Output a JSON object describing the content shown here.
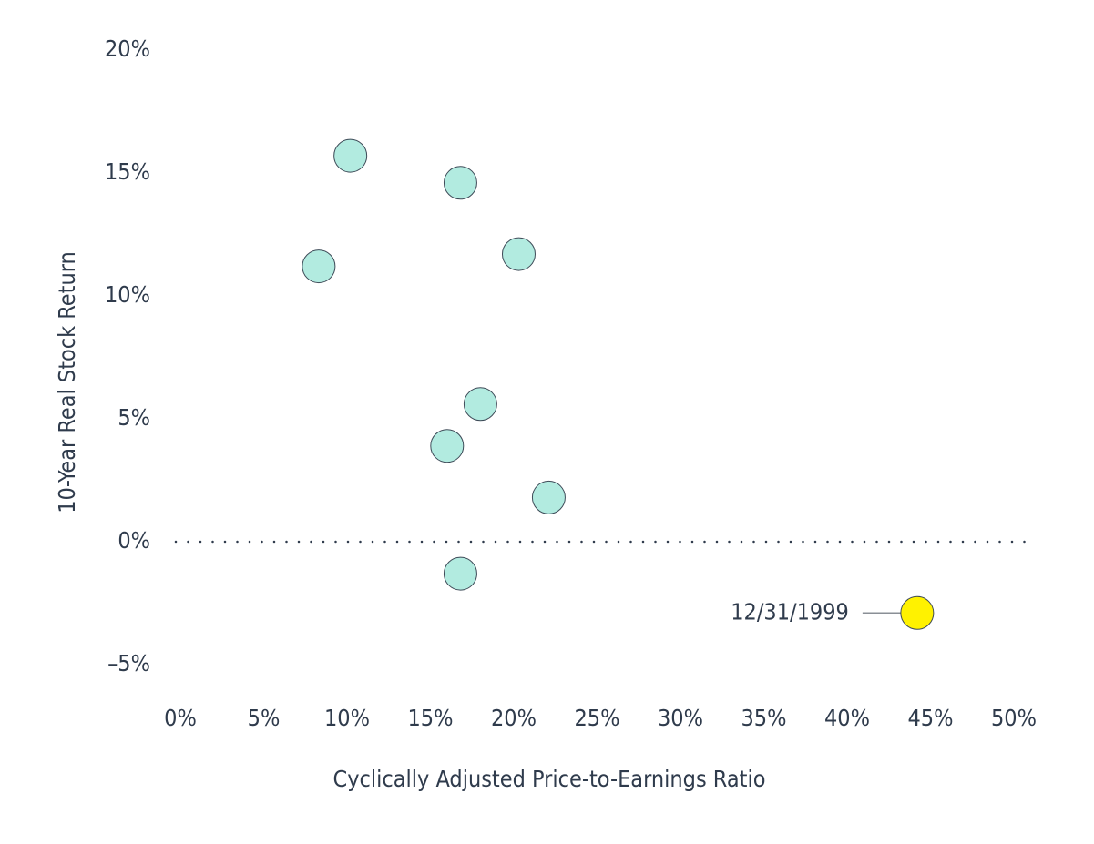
{
  "chart_data": {
    "type": "scatter",
    "xlabel": "Cyclically Adjusted Price-to-Earnings Ratio",
    "ylabel": "10-Year Real Stock Return",
    "xlim": [
      0,
      50
    ],
    "xticks": [
      {
        "value": 0,
        "label": "0%"
      },
      {
        "value": 5,
        "label": "5%"
      },
      {
        "value": 10,
        "label": "10%"
      },
      {
        "value": 15,
        "label": "15%"
      },
      {
        "value": 20,
        "label": "20%"
      },
      {
        "value": 25,
        "label": "25%"
      },
      {
        "value": 30,
        "label": "30%"
      },
      {
        "value": 35,
        "label": "35%"
      },
      {
        "value": 40,
        "label": "40%"
      },
      {
        "value": 45,
        "label": "45%"
      },
      {
        "value": 50,
        "label": "50%"
      }
    ],
    "ylim": [
      -5,
      20
    ],
    "yticks": [
      {
        "value": 20,
        "label": "20%"
      },
      {
        "value": 15,
        "label": "15%"
      },
      {
        "value": 10,
        "label": "10%"
      },
      {
        "value": 5,
        "label": "5%"
      },
      {
        "value": 0,
        "label": "0%"
      },
      {
        "value": -5,
        "label": "–5%"
      }
    ],
    "zero_line": true,
    "series": [
      {
        "color": "#b2ebe0",
        "x": [
          10.2,
          16.8,
          8.3,
          20.3,
          18.0,
          16.0,
          22.1,
          16.8
        ],
        "values": [
          15.7,
          14.6,
          11.2,
          11.7,
          5.6,
          3.9,
          1.8,
          -1.3
        ]
      },
      {
        "color": "#fff200",
        "x": [
          44.2
        ],
        "values": [
          -2.9
        ],
        "label": "12/31/1999"
      }
    ]
  }
}
